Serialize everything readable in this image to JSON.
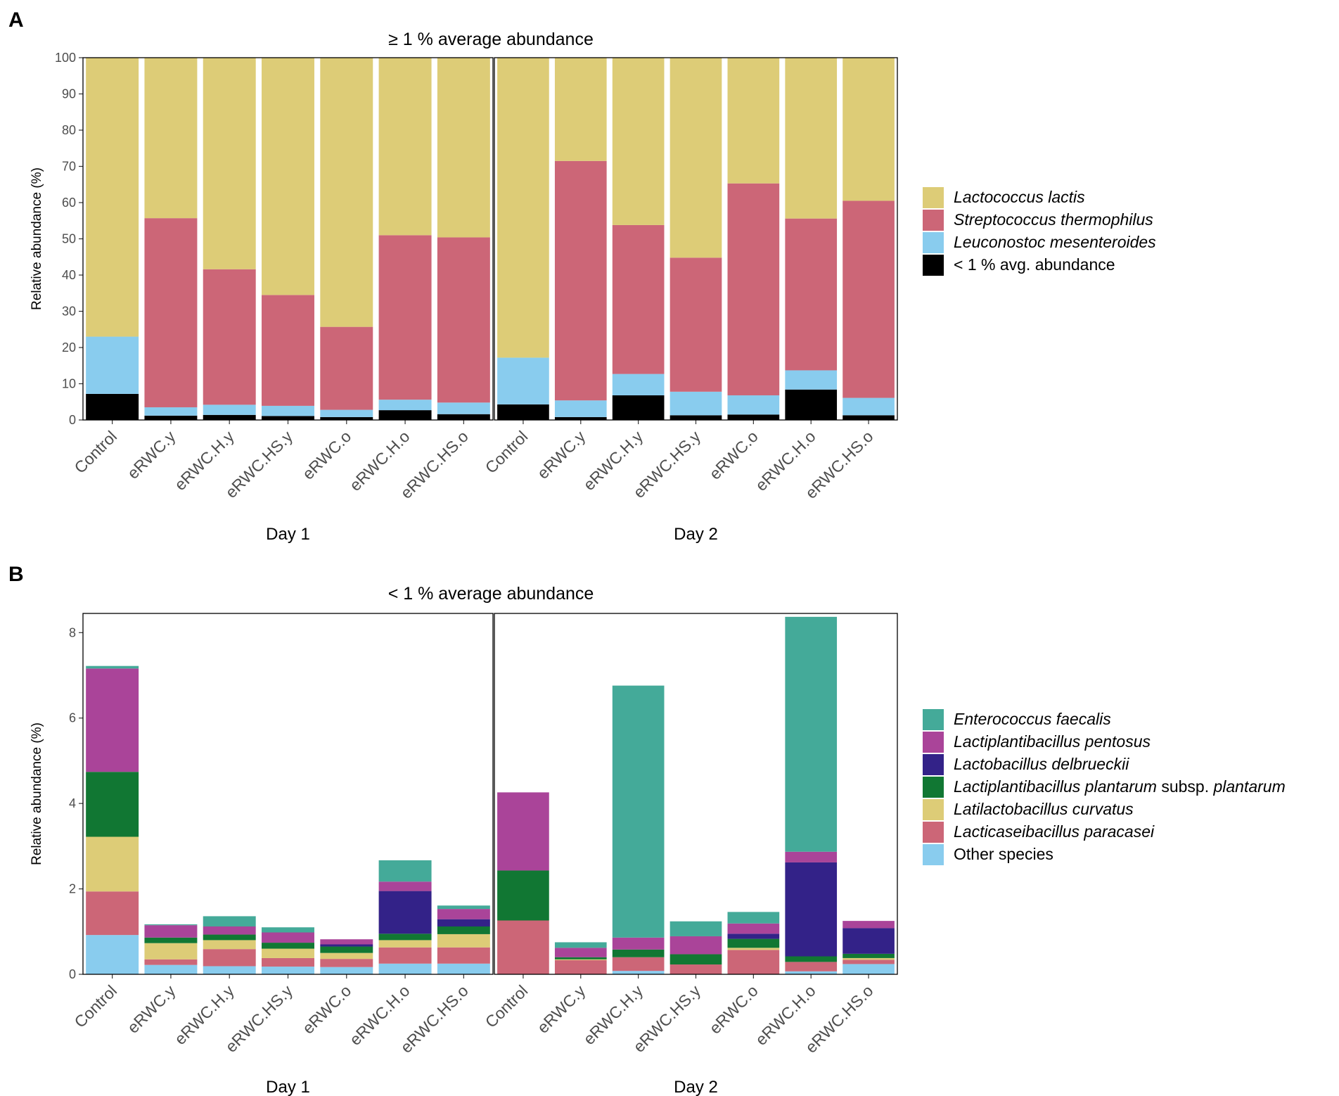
{
  "chart_data": [
    {
      "panel_letter": "A",
      "type": "bar",
      "stacked": true,
      "title": "≥ 1 % average abundance",
      "ylabel": "Relative abundance (%)",
      "ylim": [
        0,
        100
      ],
      "yticks": [
        0,
        10,
        20,
        30,
        40,
        50,
        60,
        70,
        80,
        90,
        100
      ],
      "categories": [
        "Control",
        "eRWC.y",
        "eRWC.H.y",
        "eRWC.HS.y",
        "eRWC.o",
        "eRWC.H.o",
        "eRWC.HS.o"
      ],
      "facets": [
        "Day 1",
        "Day 2"
      ],
      "legend_position": "right",
      "series": [
        {
          "name": "< 1 % avg. abundance",
          "italic": "",
          "suffix": "< 1 % avg. abundance",
          "color": "#000000",
          "values": [
            [
              7.2,
              1.2,
              1.4,
              1.1,
              0.8,
              2.7,
              1.6
            ],
            [
              4.3,
              0.8,
              6.8,
              1.3,
              1.5,
              8.4,
              1.3
            ]
          ]
        },
        {
          "name": "Leuconostoc mesenteroides",
          "italic": "Leuconostoc mesenteroides",
          "suffix": "",
          "color": "#89CCEE",
          "values": [
            [
              15.8,
              2.3,
              2.8,
              2.8,
              2.0,
              2.9,
              3.2
            ],
            [
              12.9,
              4.6,
              5.9,
              6.5,
              5.3,
              5.3,
              4.8
            ]
          ]
        },
        {
          "name": "Streptococcus thermophilus",
          "italic": "Streptococcus thermophilus",
          "suffix": "",
          "color": "#CC6677",
          "values": [
            [
              0.0,
              52.2,
              37.4,
              30.6,
              22.9,
              45.4,
              45.6
            ],
            [
              0.0,
              66.1,
              41.1,
              37.0,
              58.5,
              41.9,
              54.4
            ]
          ]
        },
        {
          "name": "Lactococcus lactis",
          "italic": "Lactococcus lactis",
          "suffix": "",
          "color": "#DDCC77",
          "values": [
            [
              77.0,
              44.3,
              58.4,
              65.5,
              74.3,
              49.0,
              49.6
            ],
            [
              82.8,
              28.5,
              46.2,
              55.2,
              34.7,
              44.4,
              39.5
            ]
          ]
        }
      ],
      "legend_order": [
        "Lactococcus lactis",
        "Streptococcus thermophilus",
        "Leuconostoc mesenteroides",
        "< 1 % avg. abundance"
      ]
    },
    {
      "panel_letter": "B",
      "type": "bar",
      "stacked": true,
      "title": "< 1 % average abundance",
      "ylabel": "Relative abundance (%)",
      "ylim": [
        0,
        8.45
      ],
      "yticks": [
        0,
        2,
        4,
        6,
        8
      ],
      "categories": [
        "Control",
        "eRWC.y",
        "eRWC.H.y",
        "eRWC.HS.y",
        "eRWC.o",
        "eRWC.H.o",
        "eRWC.HS.o"
      ],
      "facets": [
        "Day 1",
        "Day 2"
      ],
      "legend_position": "right",
      "series": [
        {
          "name": "Other species",
          "italic": "",
          "suffix": "Other species",
          "color": "#89CCEE",
          "values": [
            [
              0.92,
              0.22,
              0.19,
              0.18,
              0.17,
              0.25,
              0.25
            ],
            [
              0.0,
              0.0,
              0.08,
              0.0,
              0.0,
              0.07,
              0.24
            ]
          ]
        },
        {
          "name": "Lacticaseibacillus paracasei",
          "italic": "Lacticaseibacillus paracasei",
          "suffix": "",
          "color": "#CC6677",
          "values": [
            [
              1.02,
              0.13,
              0.4,
              0.2,
              0.19,
              0.38,
              0.38
            ],
            [
              1.26,
              0.33,
              0.32,
              0.23,
              0.57,
              0.22,
              0.1
            ]
          ]
        },
        {
          "name": "Latilactobacillus curvatus",
          "italic": "Latilactobacillus curvatus",
          "suffix": "",
          "color": "#DDCC77",
          "values": [
            [
              1.28,
              0.38,
              0.21,
              0.22,
              0.14,
              0.17,
              0.31
            ],
            [
              0.0,
              0.02,
              0.0,
              0.0,
              0.05,
              0.0,
              0.04
            ]
          ]
        },
        {
          "name": "Lactiplantibacillus plantarum subsp. plantarum",
          "italic": "Lactiplantibacillus plantarum",
          "suffix": " subsp. plantarum",
          "color": "#117733",
          "values": [
            [
              1.52,
              0.13,
              0.13,
              0.14,
              0.15,
              0.15,
              0.18
            ],
            [
              1.17,
              0.05,
              0.18,
              0.24,
              0.21,
              0.13,
              0.1
            ]
          ]
        },
        {
          "name": "Lactobacillus delbrueckii",
          "italic": "Lactobacillus delbrueckii",
          "suffix": "",
          "color": "#332288",
          "values": [
            [
              0.0,
              0.0,
              0.0,
              0.0,
              0.05,
              1.0,
              0.17
            ],
            [
              0.0,
              0.0,
              0.0,
              0.0,
              0.12,
              2.2,
              0.6
            ]
          ]
        },
        {
          "name": "Lactiplantibacillus pentosus",
          "italic": "Lactiplantibacillus pentosus",
          "suffix": "",
          "color": "#AA4499",
          "values": [
            [
              2.42,
              0.29,
              0.19,
              0.24,
              0.12,
              0.22,
              0.24
            ],
            [
              1.83,
              0.22,
              0.28,
              0.42,
              0.24,
              0.25,
              0.17
            ]
          ]
        },
        {
          "name": "Enterococcus faecalis",
          "italic": "Enterococcus faecalis",
          "suffix": "",
          "color": "#44AA99",
          "values": [
            [
              0.06,
              0.02,
              0.24,
              0.12,
              0.0,
              0.5,
              0.08
            ],
            [
              0.0,
              0.13,
              5.9,
              0.35,
              0.27,
              5.5,
              0.0
            ]
          ]
        }
      ],
      "legend_order": [
        "Enterococcus faecalis",
        "Lactiplantibacillus pentosus",
        "Lactobacillus delbrueckii",
        "Lactiplantibacillus plantarum subsp. plantarum",
        "Latilactobacillus curvatus",
        "Lacticaseibacillus paracasei",
        "Other species"
      ]
    }
  ]
}
